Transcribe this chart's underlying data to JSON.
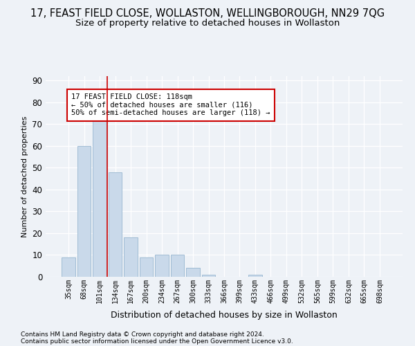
{
  "title": "17, FEAST FIELD CLOSE, WOLLASTON, WELLINGBOROUGH, NN29 7QG",
  "subtitle": "Size of property relative to detached houses in Wollaston",
  "xlabel": "Distribution of detached houses by size in Wollaston",
  "ylabel": "Number of detached properties",
  "bar_color": "#c9d9ea",
  "bar_edge_color": "#a0bcd4",
  "categories": [
    "35sqm",
    "68sqm",
    "101sqm",
    "134sqm",
    "167sqm",
    "200sqm",
    "234sqm",
    "267sqm",
    "300sqm",
    "333sqm",
    "366sqm",
    "399sqm",
    "433sqm",
    "466sqm",
    "499sqm",
    "532sqm",
    "565sqm",
    "599sqm",
    "632sqm",
    "665sqm",
    "698sqm"
  ],
  "values": [
    9,
    60,
    73,
    48,
    18,
    9,
    10,
    10,
    4,
    1,
    0,
    0,
    1,
    0,
    0,
    0,
    0,
    0,
    0,
    0,
    0
  ],
  "ylim": [
    0,
    92
  ],
  "yticks": [
    0,
    10,
    20,
    30,
    40,
    50,
    60,
    70,
    80,
    90
  ],
  "vline_x": 2.5,
  "vline_color": "#cc0000",
  "annotation_text": "17 FEAST FIELD CLOSE: 118sqm\n← 50% of detached houses are smaller (116)\n50% of semi-detached houses are larger (118) →",
  "annotation_bbox_color": "white",
  "annotation_bbox_edgecolor": "#cc0000",
  "footer1": "Contains HM Land Registry data © Crown copyright and database right 2024.",
  "footer2": "Contains public sector information licensed under the Open Government Licence v3.0.",
  "bg_color": "#eef2f7",
  "grid_color": "#ffffff",
  "title_fontsize": 10.5,
  "subtitle_fontsize": 9.5
}
